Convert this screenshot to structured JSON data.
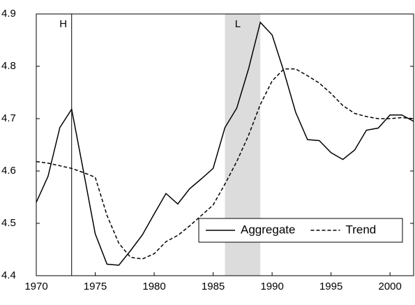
{
  "chart_data": {
    "type": "line",
    "x": [
      1970,
      1971,
      1972,
      1973,
      1974,
      1975,
      1976,
      1977,
      1978,
      1979,
      1980,
      1981,
      1982,
      1983,
      1984,
      1985,
      1986,
      1987,
      1988,
      1989,
      1990,
      1991,
      1992,
      1993,
      1994,
      1995,
      1996,
      1997,
      1998,
      1999,
      2000,
      2001,
      2002
    ],
    "series": [
      {
        "name": "Aggregate",
        "color": "#000000",
        "line_style": "solid",
        "values": [
          4.54,
          4.59,
          4.683,
          4.718,
          4.6,
          4.48,
          4.422,
          4.42,
          4.448,
          4.478,
          4.518,
          4.557,
          4.537,
          4.566,
          4.585,
          4.605,
          4.683,
          4.72,
          4.795,
          4.884,
          4.86,
          4.79,
          4.712,
          4.66,
          4.658,
          4.635,
          4.622,
          4.64,
          4.678,
          4.682,
          4.707,
          4.707,
          4.695
        ]
      },
      {
        "name": "Trend",
        "color": "#000000",
        "line_style": "dashed",
        "values": [
          4.618,
          4.615,
          4.61,
          4.605,
          4.597,
          4.588,
          4.515,
          4.462,
          4.435,
          4.432,
          4.442,
          4.465,
          4.477,
          4.495,
          4.515,
          4.535,
          4.575,
          4.618,
          4.668,
          4.727,
          4.772,
          4.795,
          4.795,
          4.782,
          4.768,
          4.748,
          4.725,
          4.71,
          4.704,
          4.7,
          4.7,
          4.702,
          4.7
        ]
      }
    ],
    "xlim": [
      1970,
      2002
    ],
    "xticks": [
      1970,
      1975,
      1980,
      1985,
      1990,
      1995,
      2000
    ],
    "ylim": [
      4.4,
      4.9
    ],
    "yticks": [
      4.4,
      4.5,
      4.6,
      4.7,
      4.8,
      4.9
    ],
    "shaded_region": [
      1986,
      1989
    ],
    "shade_color": "#dcdcdc",
    "vline": 1973,
    "annotations": [
      {
        "text": "H",
        "x": 1973
      },
      {
        "text": "L",
        "x": 1987.8
      }
    ],
    "legend": "lower right"
  }
}
